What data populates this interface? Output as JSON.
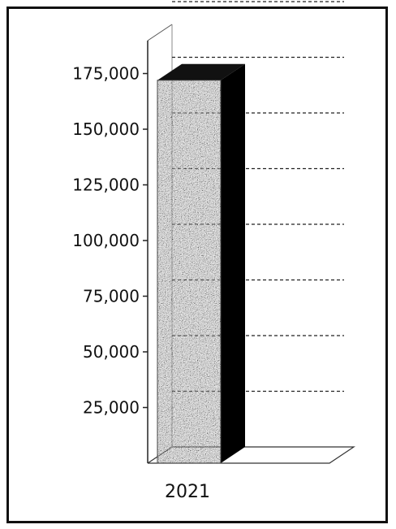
{
  "chart_data": {
    "type": "bar",
    "style": "3d-column",
    "categories": [
      "2021"
    ],
    "series": [
      {
        "values": [
          172000
        ]
      }
    ],
    "ylim": [
      0,
      200000
    ],
    "yticks": [
      25000,
      50000,
      75000,
      100000,
      125000,
      150000,
      175000
    ],
    "ytick_labels": [
      "25,000",
      "50,000",
      "75,000",
      "100,000",
      "125,000",
      "150,000",
      "175,000"
    ],
    "grid": true,
    "grid_style": "dashed",
    "legend": "none",
    "bar_fill": "speckled grey",
    "bar_side_color": "#000000"
  }
}
